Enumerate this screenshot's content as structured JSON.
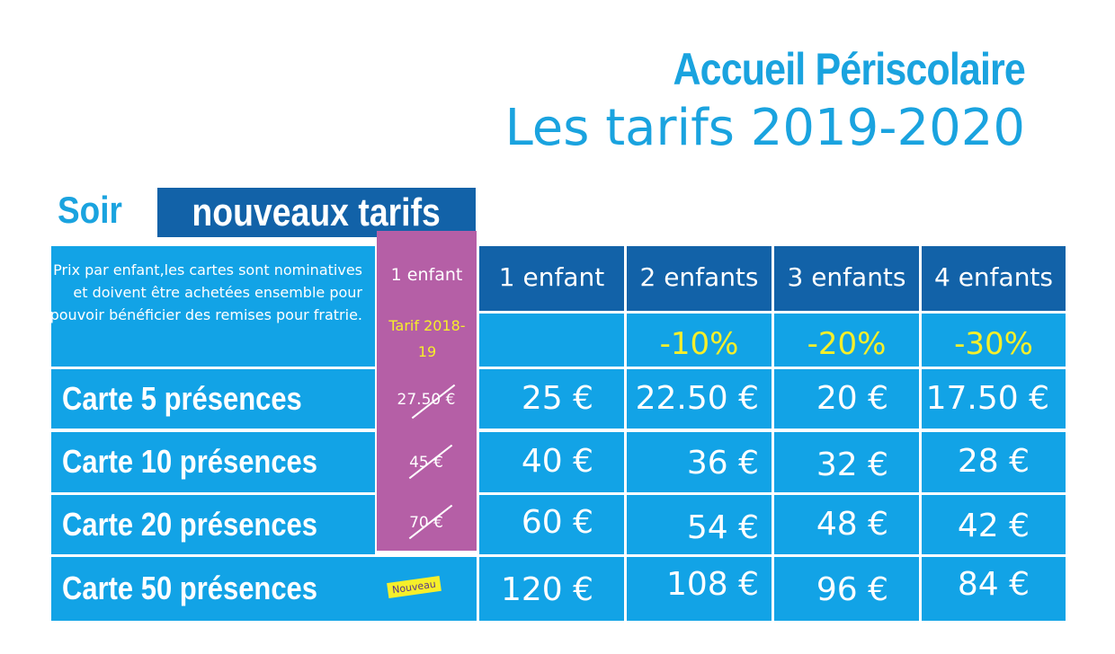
{
  "header": {
    "title": "Accueil Périscolaire",
    "subtitle": "Les tarifs 2019-2020"
  },
  "section": {
    "label": "Soir",
    "tag": "nouveaux tarifs"
  },
  "table": {
    "intro": "Prix par enfant,les cartes sont nominatives et doivent être achetées ensemble pour pouvoir bénéficier des remises pour fratrie.",
    "old_col_header": "1 enfant",
    "old_col_sub": "Tarif 2018-19",
    "columns": [
      "1 enfant",
      "2 enfants",
      "3 enfants",
      "4 enfants"
    ],
    "discounts": [
      "",
      "-10%",
      "-20%",
      "-30%"
    ],
    "rows": [
      {
        "label": "Carte 5 présences",
        "old": "27.50 €",
        "prices": [
          "25 €",
          "22.50 €",
          "20 €",
          "17.50 €"
        ]
      },
      {
        "label": "Carte 10 présences",
        "old": "45 €",
        "prices": [
          "40 €",
          "36 €",
          "32 €",
          "28 €"
        ]
      },
      {
        "label": "Carte 20 présences",
        "old": "70 €",
        "prices": [
          "60 €",
          "54 €",
          "48 €",
          "42 €"
        ]
      },
      {
        "label": "Carte 50 présences",
        "old": "",
        "prices": [
          "120 €",
          "108 €",
          "96 €",
          "84 €"
        ]
      }
    ],
    "new_badge": "Nouveau"
  },
  "colors": {
    "accent": "#1aa3df",
    "dark_blue": "#1262a8",
    "cell_blue": "#12a3e6",
    "purple": "#b55fa6",
    "yellow": "#f6ef2a"
  }
}
